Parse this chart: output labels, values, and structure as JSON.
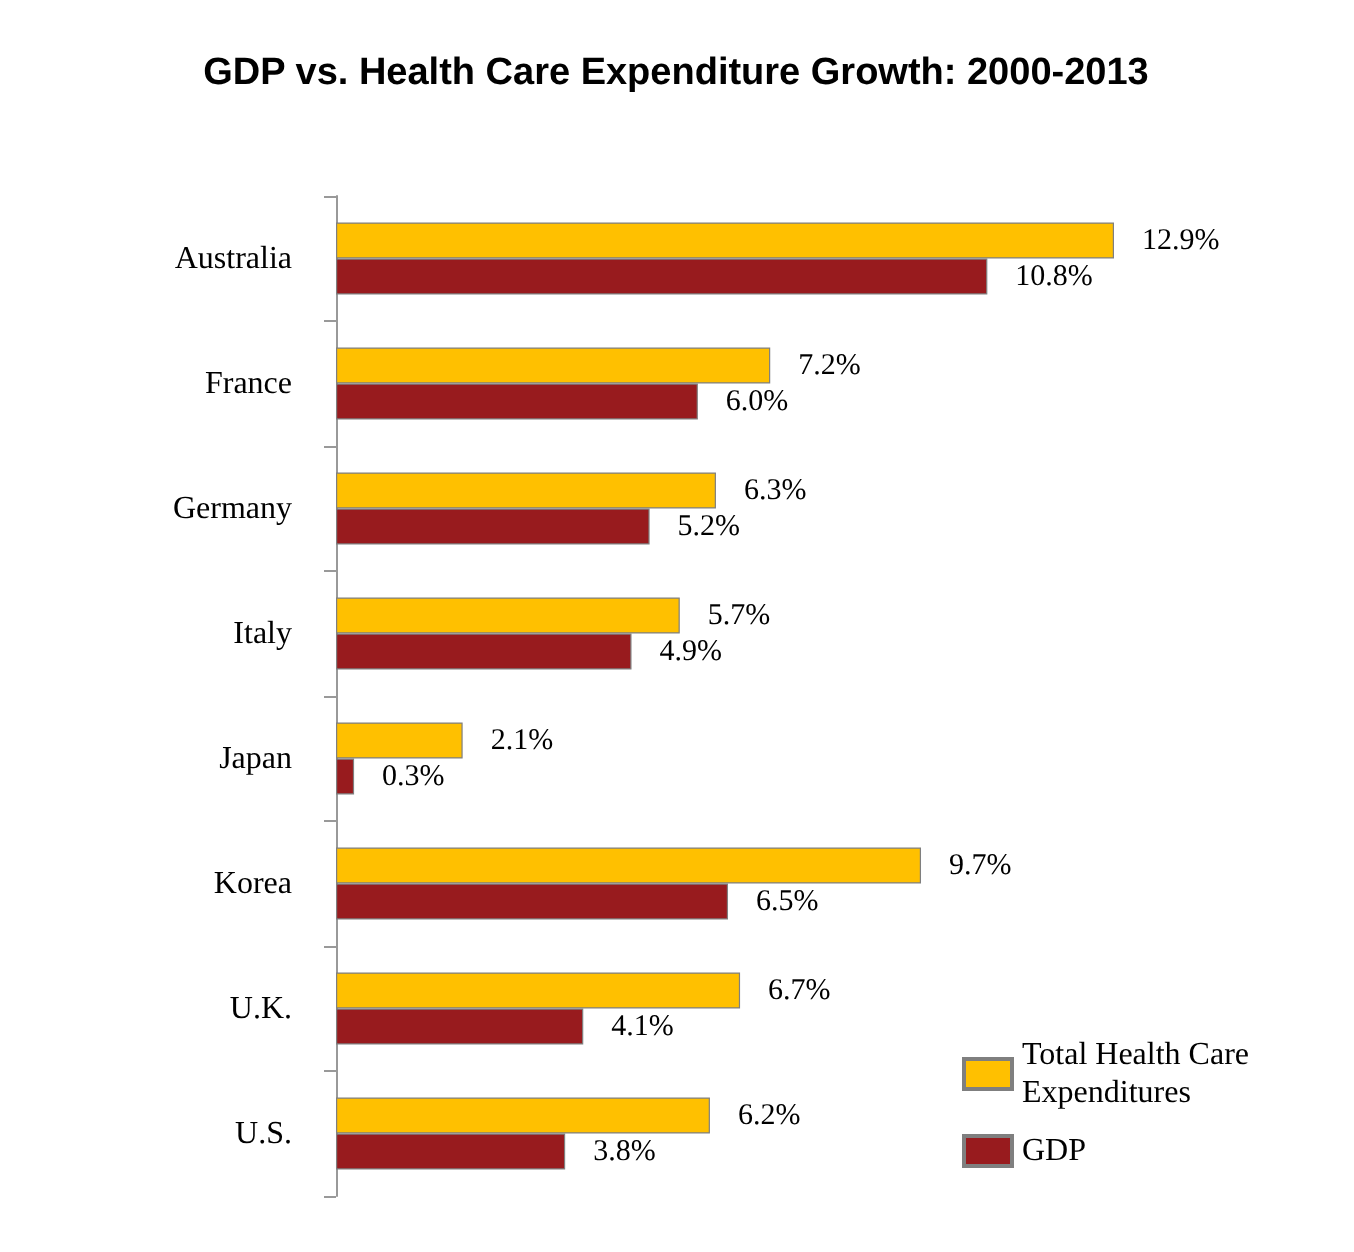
{
  "chart_data": {
    "type": "bar",
    "orientation": "horizontal",
    "title": "GDP vs. Health Care Expenditure Growth: 2000-2013",
    "categories": [
      "Australia",
      "France",
      "Germany",
      "Italy",
      "Japan",
      "Korea",
      "U.K.",
      "U.S."
    ],
    "series": [
      {
        "name": "Total Health Care Expenditures",
        "color": "#ffc000",
        "values": [
          12.9,
          7.2,
          6.3,
          5.7,
          2.1,
          9.7,
          6.7,
          6.2
        ],
        "value_labels": [
          "12.9%",
          "7.2%",
          "6.3%",
          "5.7%",
          "2.1%",
          "9.7%",
          "6.7%",
          "6.2%"
        ]
      },
      {
        "name": "GDP",
        "color": "#981b1e",
        "values": [
          10.8,
          6.0,
          5.2,
          4.9,
          0.3,
          6.5,
          4.1,
          3.8
        ],
        "value_labels": [
          "10.8%",
          "6.0%",
          "5.2%",
          "4.9%",
          "0.3%",
          "6.5%",
          "4.1%",
          "3.8%"
        ]
      }
    ],
    "legend": "bottom right",
    "tick_labels": "y"
  }
}
